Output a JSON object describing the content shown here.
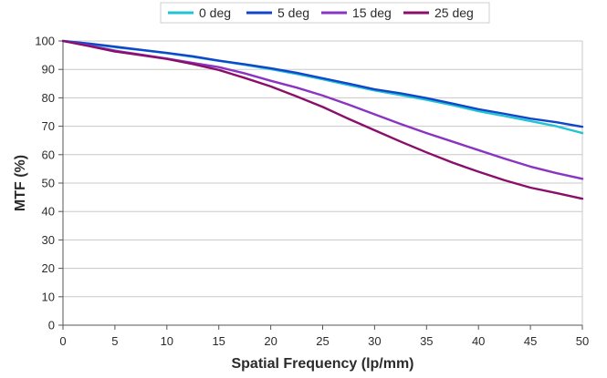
{
  "chart_data": {
    "type": "line",
    "title": "",
    "xlabel": "Spatial Frequency (lp/mm)",
    "ylabel": "MTF (%)",
    "xlim": [
      0,
      50
    ],
    "ylim": [
      0,
      100
    ],
    "x_ticks": [
      0,
      5,
      10,
      15,
      20,
      25,
      30,
      35,
      40,
      45,
      50
    ],
    "y_ticks": [
      0,
      10,
      20,
      30,
      40,
      50,
      60,
      70,
      80,
      90,
      100
    ],
    "grid": "horizontal",
    "legend_position": "top",
    "x": [
      0,
      2.5,
      5,
      7.5,
      10,
      12.5,
      15,
      17.5,
      20,
      22.5,
      25,
      27.5,
      30,
      32.5,
      35,
      37.5,
      40,
      42.5,
      45,
      47.5,
      50
    ],
    "series": [
      {
        "name": "0 deg",
        "color": "#1fc3d4",
        "values": [
          100,
          99.0,
          97.8,
          96.8,
          95.7,
          94.4,
          93.0,
          91.6,
          90.1,
          88.4,
          86.5,
          84.5,
          82.6,
          81.0,
          79.3,
          77.4,
          75.3,
          73.6,
          71.8,
          70.0,
          67.6
        ]
      },
      {
        "name": "5 deg",
        "color": "#1146c9",
        "values": [
          100,
          99.1,
          98.0,
          96.9,
          95.8,
          94.6,
          93.1,
          91.8,
          90.4,
          88.8,
          86.9,
          85.0,
          83.0,
          81.6,
          79.9,
          78.0,
          76.0,
          74.4,
          72.7,
          71.4,
          69.8
        ]
      },
      {
        "name": "15 deg",
        "color": "#8a34c2",
        "values": [
          100,
          98.4,
          96.6,
          95.2,
          93.8,
          92.3,
          90.8,
          88.6,
          86.0,
          83.6,
          80.8,
          77.6,
          74.2,
          70.8,
          67.6,
          64.6,
          61.6,
          58.6,
          55.8,
          53.5,
          51.5
        ]
      },
      {
        "name": "25 deg",
        "color": "#8a0f6a",
        "values": [
          100,
          98.2,
          96.3,
          95.0,
          93.7,
          91.9,
          89.8,
          87.0,
          84.0,
          80.5,
          76.8,
          72.6,
          68.6,
          64.6,
          60.8,
          57.2,
          54.0,
          51.0,
          48.4,
          46.5,
          44.5
        ]
      }
    ]
  }
}
